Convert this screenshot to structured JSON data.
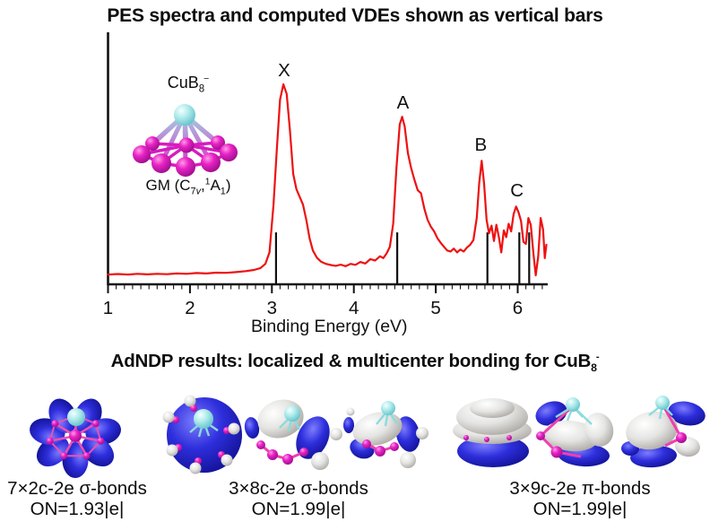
{
  "titles": {
    "spectrum": "PES spectra and computed VDEs shown as vertical bars",
    "adndp_prefix": "AdNDP results: localized & multicenter bonding for CuB",
    "adndp_sub": "8",
    "adndp_sup": "-"
  },
  "inset": {
    "formula_base": "CuB",
    "formula_sub": "8",
    "formula_sup": "−",
    "gm_pre": "GM (C",
    "gm_sub_num": "7",
    "gm_sub_it": "v",
    "gm_comma": ",",
    "gm_sup": "1",
    "gm_term": "A",
    "gm_sub2": "1",
    "gm_close": ")"
  },
  "chart_data": {
    "type": "line",
    "title": "PES spectra and computed VDEs shown as vertical bars",
    "xlabel": "Binding Energy (eV)",
    "ylabel": "",
    "xlim": [
      1,
      6.45
    ],
    "ylim": [
      0,
      1.1
    ],
    "x_ticks": [
      1,
      2,
      3,
      4,
      5,
      6
    ],
    "x_minor_step": 0.1,
    "grid": false,
    "peak_labels": [
      {
        "label": "X",
        "x": 3.15,
        "y": 1.0
      },
      {
        "label": "A",
        "x": 4.6,
        "y": 0.83
      },
      {
        "label": "B",
        "x": 5.55,
        "y": 0.61
      },
      {
        "label": "C",
        "x": 5.99,
        "y": 0.37
      }
    ],
    "vde_bars": {
      "description": "computed VDEs shown as vertical bars",
      "color": "#111111",
      "top_intensity": 0.225,
      "positions": [
        3.05,
        4.53,
        5.63,
        6.02,
        6.14
      ]
    },
    "series": [
      {
        "name": "PES spectrum of CuB8-",
        "color": "#ee1111",
        "points": [
          [
            1.0,
            0.004
          ],
          [
            1.12,
            0.007
          ],
          [
            1.24,
            0.004
          ],
          [
            1.36,
            0.008
          ],
          [
            1.48,
            0.005
          ],
          [
            1.6,
            0.008
          ],
          [
            1.72,
            0.006
          ],
          [
            1.84,
            0.01
          ],
          [
            1.96,
            0.008
          ],
          [
            2.08,
            0.012
          ],
          [
            2.2,
            0.01
          ],
          [
            2.32,
            0.014
          ],
          [
            2.44,
            0.013
          ],
          [
            2.56,
            0.017
          ],
          [
            2.68,
            0.022
          ],
          [
            2.78,
            0.028
          ],
          [
            2.86,
            0.038
          ],
          [
            2.92,
            0.06
          ],
          [
            2.97,
            0.12
          ],
          [
            3.02,
            0.37
          ],
          [
            3.06,
            0.66
          ],
          [
            3.1,
            0.92
          ],
          [
            3.14,
            1.0
          ],
          [
            3.18,
            0.95
          ],
          [
            3.22,
            0.76
          ],
          [
            3.26,
            0.53
          ],
          [
            3.3,
            0.45
          ],
          [
            3.34,
            0.41
          ],
          [
            3.38,
            0.37
          ],
          [
            3.42,
            0.29
          ],
          [
            3.46,
            0.195
          ],
          [
            3.5,
            0.13
          ],
          [
            3.55,
            0.092
          ],
          [
            3.6,
            0.072
          ],
          [
            3.66,
            0.06
          ],
          [
            3.72,
            0.054
          ],
          [
            3.78,
            0.05
          ],
          [
            3.84,
            0.056
          ],
          [
            3.9,
            0.048
          ],
          [
            3.96,
            0.06
          ],
          [
            4.02,
            0.055
          ],
          [
            4.08,
            0.07
          ],
          [
            4.14,
            0.062
          ],
          [
            4.2,
            0.085
          ],
          [
            4.26,
            0.078
          ],
          [
            4.32,
            0.1
          ],
          [
            4.36,
            0.09
          ],
          [
            4.4,
            0.115
          ],
          [
            4.44,
            0.15
          ],
          [
            4.48,
            0.27
          ],
          [
            4.52,
            0.56
          ],
          [
            4.56,
            0.79
          ],
          [
            4.59,
            0.83
          ],
          [
            4.62,
            0.78
          ],
          [
            4.66,
            0.64
          ],
          [
            4.7,
            0.56
          ],
          [
            4.74,
            0.5
          ],
          [
            4.78,
            0.445
          ],
          [
            4.82,
            0.43
          ],
          [
            4.86,
            0.35
          ],
          [
            4.9,
            0.29
          ],
          [
            4.94,
            0.255
          ],
          [
            4.98,
            0.23
          ],
          [
            5.02,
            0.195
          ],
          [
            5.06,
            0.17
          ],
          [
            5.1,
            0.15
          ],
          [
            5.14,
            0.13
          ],
          [
            5.18,
            0.125
          ],
          [
            5.22,
            0.14
          ],
          [
            5.26,
            0.12
          ],
          [
            5.3,
            0.135
          ],
          [
            5.34,
            0.125
          ],
          [
            5.38,
            0.145
          ],
          [
            5.42,
            0.16
          ],
          [
            5.46,
            0.185
          ],
          [
            5.5,
            0.3
          ],
          [
            5.53,
            0.48
          ],
          [
            5.56,
            0.6
          ],
          [
            5.59,
            0.48
          ],
          [
            5.62,
            0.29
          ],
          [
            5.65,
            0.22
          ],
          [
            5.68,
            0.26
          ],
          [
            5.71,
            0.18
          ],
          [
            5.74,
            0.265
          ],
          [
            5.77,
            0.2
          ],
          [
            5.8,
            0.12
          ],
          [
            5.83,
            0.235
          ],
          [
            5.86,
            0.2
          ],
          [
            5.89,
            0.27
          ],
          [
            5.92,
            0.23
          ],
          [
            5.95,
            0.32
          ],
          [
            5.98,
            0.36
          ],
          [
            6.01,
            0.33
          ],
          [
            6.04,
            0.285
          ],
          [
            6.07,
            0.175
          ],
          [
            6.1,
            0.165
          ],
          [
            6.13,
            0.3
          ],
          [
            6.16,
            0.265
          ],
          [
            6.19,
            0.12
          ],
          [
            6.22,
            0.0
          ],
          [
            6.25,
            0.1
          ],
          [
            6.28,
            0.3
          ],
          [
            6.31,
            0.24
          ],
          [
            6.33,
            0.09
          ],
          [
            6.35,
            0.16
          ]
        ]
      }
    ]
  },
  "bonding_panels": [
    {
      "label": "7×2c-2e σ-bonds",
      "occupation": "ON=1.93|e|"
    },
    {
      "label": "3×8c-2e σ-bonds",
      "occupation": "ON=1.99|e|"
    },
    {
      "label": "3×9c-2e π-bonds",
      "occupation": "ON=1.99|e|"
    }
  ],
  "colors": {
    "spectrum_line": "#ee1111",
    "axis": "#111111",
    "boron_magenta": "#e01ec8",
    "copper_cyan": "#aeeaea",
    "lobe_blue": "#2e2edc",
    "lobe_white": "#e4e4e2",
    "bond_pink": "#ef4fb0"
  }
}
